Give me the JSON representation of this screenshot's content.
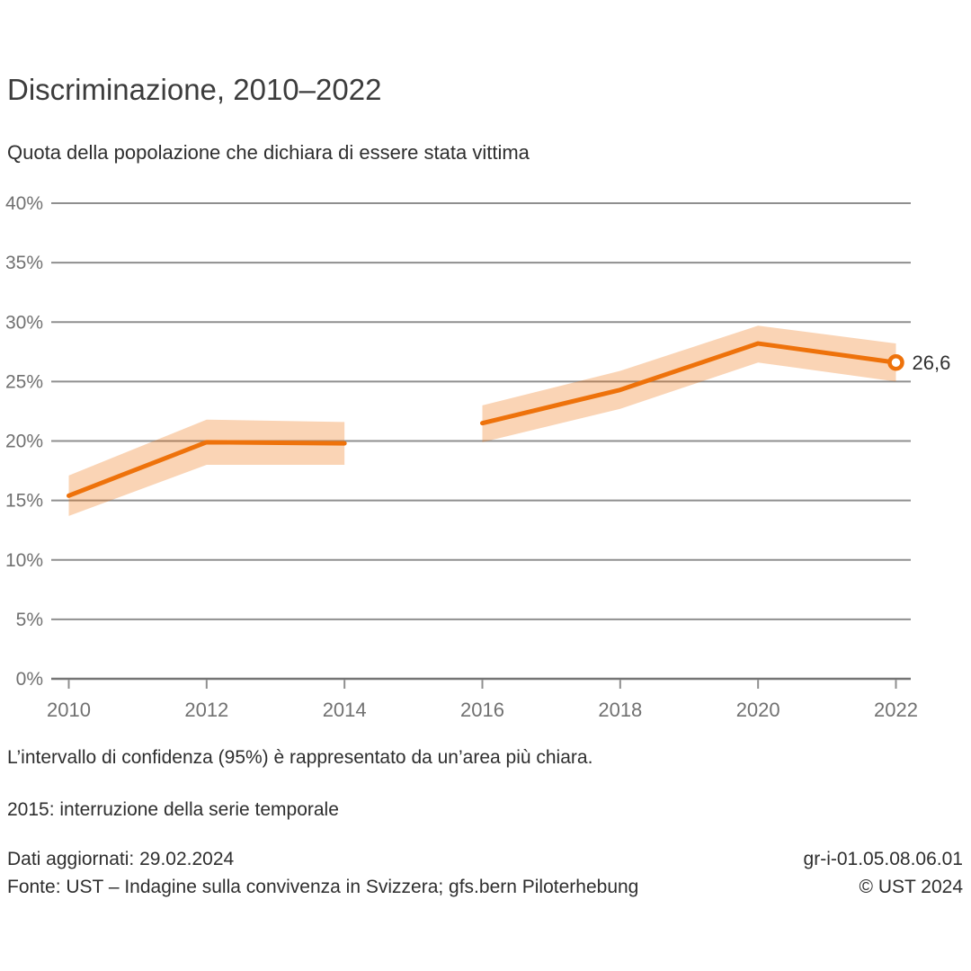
{
  "header": {
    "title": "Discriminazione, 2010–2022",
    "subtitle": "Quota della popolazione che dichiara di essere stata vittima"
  },
  "chart_data": {
    "type": "line",
    "title": "Discriminazione, 2010–2022",
    "subtitle": "Quota della popolazione che dichiara di essere stata vittima",
    "x": [
      2010,
      2012,
      2014,
      2016,
      2018,
      2020,
      2022
    ],
    "series": [
      {
        "name": "Quota della popolazione che dichiara di essere stata vittima",
        "values": [
          15.4,
          19.9,
          19.8,
          21.5,
          24.3,
          28.2,
          26.6
        ],
        "ci_lower": [
          13.7,
          18.0,
          18.0,
          19.9,
          22.7,
          26.6,
          25.0
        ],
        "ci_upper": [
          17.1,
          21.8,
          21.6,
          23.0,
          25.9,
          29.7,
          28.2
        ]
      }
    ],
    "gap_after_x": 2014,
    "gap_note": "2015: interruzione della serie temporale",
    "end_label": "26,6",
    "xlabel": "",
    "ylabel": "",
    "ylim": [
      0,
      40
    ],
    "y_tick_step": 5,
    "y_tick_suffix": "%",
    "grid": true,
    "legend": "none",
    "colors": {
      "line": "#ee720b",
      "band": "#fad9bc",
      "band_opacity": 0.3,
      "grid": "#8f8f8f",
      "axis": "#757575",
      "axis_text": "#717171",
      "text": "#303030"
    }
  },
  "footnotes": [
    "L’intervallo di confidenza (95%) è rappresentato da un’area più chiara.",
    "2015: interruzione della serie temporale"
  ],
  "meta": {
    "updated": "Dati aggiornati: 29.02.2024",
    "code": "gr-i-01.05.08.06.01",
    "source": "Fonte: UST – Indagine sulla convivenza in Svizzera; gfs.bern Piloterhebung",
    "copyright": "© UST 2024"
  }
}
